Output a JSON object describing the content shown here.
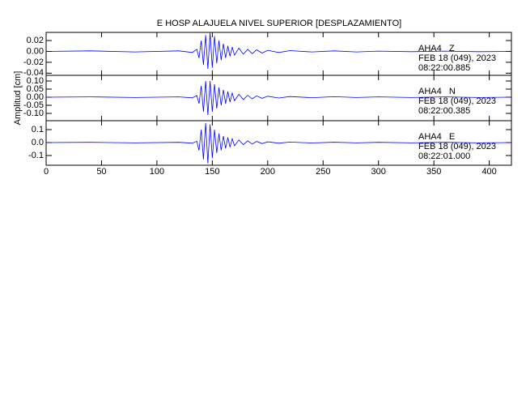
{
  "chart_data": [
    {
      "type": "line",
      "title": "E HOSP ALAJUELA NIVEL SUPERIOR [DESPLAZAMIENTO]",
      "color": "#0000ff",
      "annotations": [
        "AHA4   Z",
        "FEB 18 (049), 2023",
        "08:22:00.885"
      ],
      "xlim": [
        0,
        420
      ],
      "ylim": [
        -0.044,
        0.035
      ],
      "yticks": [
        {
          "value": 0.02,
          "label": "0.02"
        },
        {
          "value": 0,
          "label": "0.00"
        },
        {
          "value": -0.02,
          "label": "-0.02"
        },
        {
          "value": -0.04,
          "label": "-0.04"
        }
      ],
      "x": [
        0,
        40,
        80,
        120,
        132,
        136,
        138,
        140,
        142,
        144,
        146,
        148,
        150,
        152,
        154,
        156,
        158,
        160,
        162,
        164,
        166,
        168,
        170,
        174,
        178,
        182,
        186,
        190,
        195,
        200,
        210,
        220,
        240,
        260,
        280,
        300,
        330,
        360,
        390,
        420
      ],
      "values": [
        0,
        0.001,
        -0.001,
        0.001,
        -0.002,
        0.004,
        -0.012,
        0.02,
        -0.025,
        0.03,
        -0.032,
        0.034,
        -0.03,
        0.028,
        -0.022,
        0.02,
        -0.016,
        0.014,
        -0.012,
        0.01,
        -0.009,
        0.008,
        -0.007,
        0.006,
        -0.005,
        0.004,
        -0.004,
        0.003,
        -0.003,
        0.002,
        -0.002,
        0.0015,
        -0.001,
        0.001,
        -0.001,
        0.0005,
        -0.0005,
        0.0005,
        -0.0005,
        0
      ]
    },
    {
      "type": "line",
      "ylabel": "Amplitud [cm]",
      "color": "#0000ff",
      "annotations": [
        "AHA4   N",
        "FEB 18 (049), 2023",
        "08:22:00.385"
      ],
      "xlim": [
        0,
        420
      ],
      "ylim": [
        -0.145,
        0.135
      ],
      "yticks": [
        {
          "value": 0.1,
          "label": "0.10"
        },
        {
          "value": 0.05,
          "label": "0.05"
        },
        {
          "value": 0,
          "label": "0.00"
        },
        {
          "value": -0.05,
          "label": "-0.05"
        },
        {
          "value": -0.1,
          "label": "-0.10"
        }
      ],
      "x": [
        0,
        40,
        80,
        120,
        132,
        136,
        138,
        140,
        142,
        144,
        146,
        148,
        150,
        152,
        154,
        156,
        158,
        160,
        162,
        164,
        166,
        168,
        170,
        174,
        178,
        182,
        186,
        190,
        195,
        200,
        210,
        220,
        240,
        260,
        280,
        300,
        330,
        360,
        390,
        420
      ],
      "values": [
        0,
        0.002,
        -0.002,
        0.002,
        -0.004,
        0.01,
        -0.04,
        0.07,
        -0.09,
        0.1,
        -0.11,
        0.1,
        -0.09,
        0.08,
        -0.07,
        0.06,
        -0.05,
        0.045,
        -0.04,
        0.035,
        -0.03,
        0.026,
        -0.022,
        0.018,
        -0.015,
        0.012,
        -0.01,
        0.008,
        -0.007,
        0.006,
        -0.005,
        0.004,
        -0.003,
        0.003,
        -0.002,
        0.002,
        -0.002,
        0.002,
        -0.002,
        0
      ]
    },
    {
      "type": "line",
      "color": "#0000ff",
      "annotations": [
        "AHA4   E",
        "FEB 18 (049), 2023",
        "08:22:01.000"
      ],
      "xlim": [
        0,
        420
      ],
      "ylim": [
        -0.175,
        0.169
      ],
      "xticks": [
        0,
        50,
        100,
        150,
        200,
        250,
        300,
        350,
        400
      ],
      "yticks": [
        0.1,
        {
          "value": 0,
          "label": "0.0"
        },
        -0.1
      ],
      "x": [
        0,
        40,
        80,
        120,
        132,
        136,
        138,
        140,
        142,
        144,
        146,
        148,
        150,
        152,
        154,
        156,
        158,
        160,
        162,
        164,
        166,
        168,
        170,
        174,
        178,
        182,
        186,
        190,
        195,
        200,
        210,
        220,
        240,
        260,
        280,
        300,
        330,
        360,
        390,
        420
      ],
      "values": [
        0,
        0.002,
        -0.002,
        0.002,
        -0.005,
        0.01,
        -0.06,
        0.1,
        -0.13,
        0.15,
        -0.16,
        0.14,
        -0.12,
        0.1,
        -0.08,
        0.07,
        -0.06,
        0.05,
        -0.045,
        0.04,
        -0.035,
        0.03,
        -0.025,
        0.02,
        -0.016,
        0.013,
        -0.011,
        0.009,
        -0.008,
        0.006,
        -0.005,
        0.004,
        -0.003,
        0.003,
        -0.002,
        0.002,
        -0.002,
        0.002,
        -0.002,
        0
      ]
    }
  ]
}
